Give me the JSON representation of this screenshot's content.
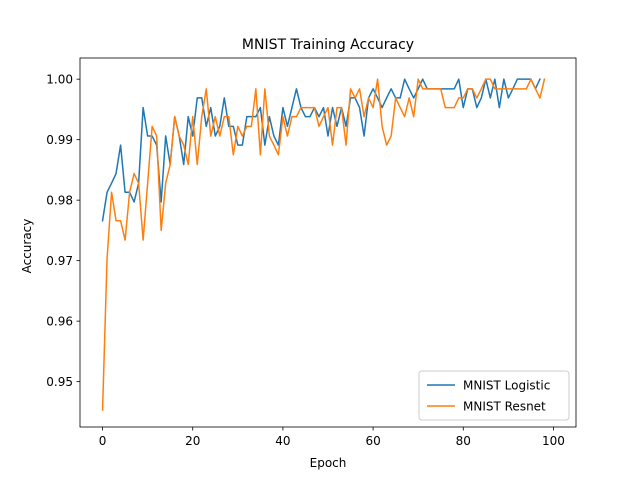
{
  "chart_data": {
    "type": "line",
    "title": "MNIST Training Accuracy",
    "xlabel": "Epoch",
    "ylabel": "Accuracy",
    "xlim": [
      -5,
      105
    ],
    "ylim": [
      0.9425,
      1.0035
    ],
    "xticks": [
      0,
      20,
      40,
      60,
      80,
      100
    ],
    "xtick_labels": [
      "0",
      "20",
      "40",
      "60",
      "80",
      "100"
    ],
    "yticks": [
      0.95,
      0.96,
      0.97,
      0.98,
      0.99,
      1.0
    ],
    "ytick_labels": [
      "0.95",
      "0.96",
      "0.97",
      "0.98",
      "0.99",
      "1.00"
    ],
    "grid": false,
    "legend_position": "lower-right",
    "series": [
      {
        "name": "MNIST Logistic",
        "color": "#1f77b4",
        "values": [
          0.9766,
          0.9813,
          0.9828,
          0.9844,
          0.9891,
          0.9813,
          0.9813,
          0.9797,
          0.9828,
          0.9953,
          0.9906,
          0.9906,
          0.9891,
          0.9797,
          0.9906,
          0.9859,
          0.9938,
          0.9906,
          0.9859,
          0.9938,
          0.9906,
          0.9969,
          0.9969,
          0.9922,
          0.9953,
          0.9906,
          0.9922,
          0.9969,
          0.9922,
          0.9922,
          0.9891,
          0.9891,
          0.9938,
          0.9938,
          0.9938,
          0.9953,
          0.9891,
          0.9938,
          0.9906,
          0.9891,
          0.9953,
          0.9922,
          0.9953,
          0.9984,
          0.9953,
          0.9938,
          0.9938,
          0.9953,
          0.9938,
          0.9953,
          0.9906,
          0.9953,
          0.9922,
          0.9953,
          0.9922,
          0.9969,
          0.9969,
          0.9953,
          0.9906,
          0.9969,
          0.9984,
          0.9969,
          0.9953,
          0.9969,
          0.9984,
          0.9969,
          0.9969,
          1.0,
          0.9984,
          0.9969,
          0.9984,
          1.0,
          0.9984,
          0.9984,
          0.9984,
          0.9984,
          0.9984,
          0.9984,
          0.9984,
          1.0,
          0.9953,
          0.9984,
          0.9984,
          0.9953,
          0.9969,
          1.0,
          0.9969,
          1.0,
          0.9953,
          1.0,
          0.9969,
          0.9984,
          1.0,
          1.0,
          1.0,
          1.0,
          0.9984,
          1.0
        ]
      },
      {
        "name": "MNIST Resnet",
        "color": "#ff7f0e",
        "values": [
          0.9453,
          0.9703,
          0.9813,
          0.9766,
          0.9766,
          0.9734,
          0.9813,
          0.9844,
          0.9828,
          0.9734,
          0.9828,
          0.9922,
          0.9906,
          0.975,
          0.9828,
          0.9859,
          0.9938,
          0.9906,
          0.9891,
          0.9859,
          0.9938,
          0.9859,
          0.9938,
          0.9984,
          0.9906,
          0.9938,
          0.9906,
          0.9938,
          0.9938,
          0.9875,
          0.9922,
          0.9906,
          0.9922,
          0.9922,
          0.9984,
          0.9875,
          0.9984,
          0.9906,
          0.9891,
          0.9875,
          0.9938,
          0.9906,
          0.9938,
          0.9938,
          0.9953,
          0.9953,
          0.9953,
          0.9953,
          0.9922,
          0.9938,
          0.9953,
          0.9891,
          0.9953,
          0.9953,
          0.9891,
          0.9984,
          0.9969,
          0.9984,
          0.9938,
          0.9969,
          0.9953,
          1.0,
          0.9922,
          0.9891,
          0.9906,
          0.9969,
          0.9953,
          0.9938,
          0.9969,
          0.9938,
          1.0,
          0.9984,
          0.9984,
          0.9984,
          0.9984,
          0.9984,
          0.9953,
          0.9953,
          0.9953,
          0.9969,
          0.9969,
          0.9984,
          0.9984,
          0.9969,
          0.9984,
          1.0,
          1.0,
          0.9984,
          0.9984,
          0.9984,
          0.9984,
          0.9984,
          0.9984,
          0.9984,
          0.9984,
          1.0,
          0.9984,
          0.9969,
          1.0
        ]
      }
    ]
  }
}
